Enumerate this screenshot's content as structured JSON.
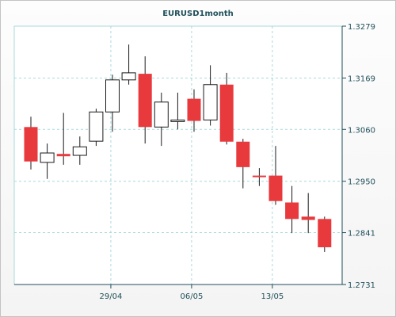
{
  "chart_data": {
    "type": "candlestick",
    "title": "EURUSD1month",
    "xlabel": "",
    "ylabel": "",
    "ylim": [
      1.2731,
      1.3279
    ],
    "y_ticks": [
      "1.3279",
      "1.3169",
      "1.3060",
      "1.2950",
      "1.2841",
      "1.2731"
    ],
    "x_tick_labels": [
      {
        "label": "29/04",
        "index": 4.9
      },
      {
        "label": "06/05",
        "index": 9.85
      },
      {
        "label": "13/05",
        "index": 14.8
      }
    ],
    "grid": true,
    "colors": {
      "up": "#ffffff",
      "down": "#e8393d",
      "outline": "#1a1a1a",
      "grid": "#a9d9da",
      "axis": "#1f4f5a"
    },
    "candles": [
      {
        "open": 1.3065,
        "high": 1.3087,
        "low": 1.2975,
        "close": 1.2992
      },
      {
        "open": 1.299,
        "high": 1.303,
        "low": 1.2955,
        "close": 1.301
      },
      {
        "open": 1.3008,
        "high": 1.3095,
        "low": 1.2985,
        "close": 1.3003
      },
      {
        "open": 1.3005,
        "high": 1.3045,
        "low": 1.2985,
        "close": 1.3023
      },
      {
        "open": 1.3035,
        "high": 1.3104,
        "low": 1.3025,
        "close": 1.3097
      },
      {
        "open": 1.3097,
        "high": 1.3176,
        "low": 1.3055,
        "close": 1.3165
      },
      {
        "open": 1.3165,
        "high": 1.324,
        "low": 1.3155,
        "close": 1.318
      },
      {
        "open": 1.3178,
        "high": 1.3215,
        "low": 1.303,
        "close": 1.3065
      },
      {
        "open": 1.3065,
        "high": 1.3138,
        "low": 1.3025,
        "close": 1.3118
      },
      {
        "open": 1.308,
        "high": 1.3138,
        "low": 1.306,
        "close": 1.308
      },
      {
        "open": 1.3125,
        "high": 1.3145,
        "low": 1.3055,
        "close": 1.3078
      },
      {
        "open": 1.308,
        "high": 1.3196,
        "low": 1.3068,
        "close": 1.3155
      },
      {
        "open": 1.3155,
        "high": 1.318,
        "low": 1.3028,
        "close": 1.3034
      },
      {
        "open": 1.3034,
        "high": 1.304,
        "low": 1.2935,
        "close": 1.298
      },
      {
        "open": 1.2962,
        "high": 1.2978,
        "low": 1.294,
        "close": 1.2959
      },
      {
        "open": 1.2962,
        "high": 1.3025,
        "low": 1.29,
        "close": 1.2908
      },
      {
        "open": 1.2905,
        "high": 1.294,
        "low": 1.284,
        "close": 1.287
      },
      {
        "open": 1.2875,
        "high": 1.2925,
        "low": 1.284,
        "close": 1.2868
      },
      {
        "open": 1.287,
        "high": 1.2875,
        "low": 1.28,
        "close": 1.281
      }
    ]
  }
}
